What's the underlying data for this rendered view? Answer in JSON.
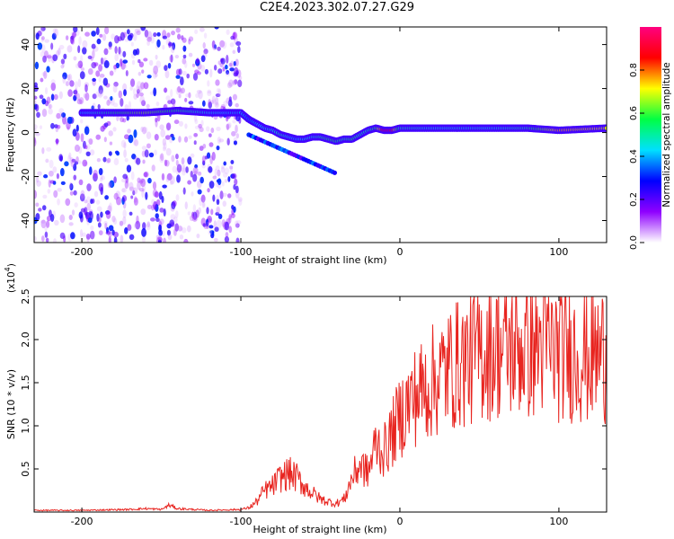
{
  "title": "C2E4.2023.302.07.27.G29",
  "colors": {
    "snr_line": "#e8241f",
    "colormap": [
      "#ffffff",
      "#8f00ff",
      "#0000ff",
      "#00e0ff",
      "#00ff44",
      "#ffff00",
      "#ff0000",
      "#ff0080"
    ]
  },
  "chart_data": [
    {
      "type": "heatmap",
      "title": "",
      "xlabel": "Height of straight line (km)",
      "ylabel": "Frequency (Hz)",
      "xlim": [
        -230,
        130
      ],
      "ylim": [
        -50,
        48
      ],
      "x_ticks": [
        -200,
        -100,
        0,
        100
      ],
      "y_ticks": [
        -40,
        -20,
        0,
        20,
        40
      ],
      "colorbar": {
        "label": "Normalized spectral amplitude",
        "range": [
          0.0,
          1.0
        ],
        "ticks": [
          0.0,
          0.2,
          0.4,
          0.6,
          0.8
        ]
      },
      "ridge": {
        "x": [
          -200,
          -180,
          -160,
          -140,
          -120,
          -100,
          -95,
          -90,
          -85,
          -80,
          -75,
          -70,
          -65,
          -60,
          -55,
          -50,
          -45,
          -40,
          -35,
          -30,
          -25,
          -20,
          -15,
          -10,
          -5,
          0,
          20,
          40,
          60,
          80,
          100,
          130
        ],
        "frequency": [
          9,
          9,
          9,
          10,
          9,
          9,
          6,
          4,
          2,
          1,
          -1,
          -2,
          -3,
          -3,
          -2,
          -2,
          -3,
          -4,
          -3,
          -3,
          -1,
          1,
          2,
          1,
          1,
          2,
          2,
          2,
          2,
          2,
          1,
          2
        ],
        "amplitude": [
          0.4,
          0.55,
          0.65,
          0.55,
          0.45,
          0.4,
          0.35,
          0.4,
          0.45,
          0.45,
          0.5,
          0.45,
          0.4,
          0.45,
          0.45,
          0.5,
          0.55,
          0.55,
          0.5,
          0.55,
          0.5,
          0.5,
          0.55,
          0.9,
          0.9,
          0.5,
          0.45,
          0.45,
          0.45,
          0.5,
          0.75,
          0.7
        ]
      },
      "background_noise_region_x": [
        -230,
        -100
      ]
    },
    {
      "type": "line",
      "title": "",
      "xlabel": "Height of straight line (km)",
      "ylabel": "SNR (10 * v/v)",
      "y_multiplier_label": "(x10",
      "y_multiplier_exp": "4",
      "y_multiplier_close": ")",
      "xlim": [
        -230,
        130
      ],
      "ylim": [
        0,
        2.5
      ],
      "x_ticks": [
        -200,
        -100,
        0,
        100
      ],
      "y_ticks": [
        0.5,
        1.0,
        1.5,
        2.0,
        2.5
      ],
      "series": [
        {
          "x": [
            -230,
            -200,
            -170,
            -160,
            -150,
            -145,
            -140,
            -120,
            -100,
            -95,
            -90,
            -85,
            -80,
            -75,
            -70,
            -65,
            -60,
            -55,
            -50,
            -45,
            -40,
            -35,
            -30,
            -25,
            -20,
            -15,
            -10,
            -5,
            0,
            5,
            10,
            20,
            30,
            40,
            50,
            60,
            70,
            80,
            90,
            100,
            110,
            120,
            130
          ],
          "y": [
            0.02,
            0.02,
            0.03,
            0.04,
            0.03,
            0.08,
            0.04,
            0.02,
            0.03,
            0.05,
            0.12,
            0.25,
            0.3,
            0.4,
            0.45,
            0.4,
            0.3,
            0.22,
            0.15,
            0.12,
            0.1,
            0.15,
            0.4,
            0.55,
            0.45,
            0.8,
            0.7,
            0.9,
            1.1,
            1.25,
            1.35,
            1.5,
            1.65,
            1.75,
            1.85,
            1.9,
            1.9,
            1.9,
            1.95,
            1.85,
            1.85,
            1.8,
            1.85
          ]
        }
      ]
    }
  ]
}
